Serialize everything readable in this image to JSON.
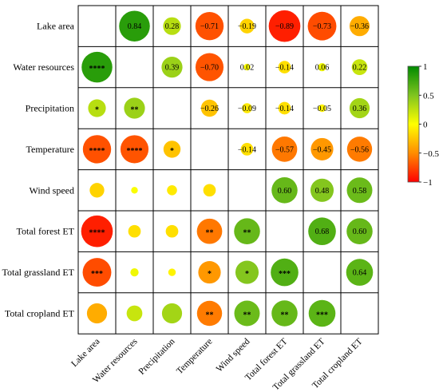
{
  "chart_data": {
    "type": "heatmap",
    "title": "",
    "variables": [
      "Lake area",
      "Water resources",
      "Precipitation",
      "Temperature",
      "Wind speed",
      "Total forest ET",
      "Total grassland ET",
      "Total cropland ET"
    ],
    "upper": [
      {
        "row": 0,
        "col": 1,
        "value": 0.84,
        "label": "0.84"
      },
      {
        "row": 0,
        "col": 2,
        "value": 0.28,
        "label": "0.28"
      },
      {
        "row": 0,
        "col": 3,
        "value": -0.71,
        "label": "−0.71"
      },
      {
        "row": 0,
        "col": 4,
        "value": -0.19,
        "label": "−0.19"
      },
      {
        "row": 0,
        "col": 5,
        "value": -0.89,
        "label": "−0.89"
      },
      {
        "row": 0,
        "col": 6,
        "value": -0.73,
        "label": "−0.73"
      },
      {
        "row": 0,
        "col": 7,
        "value": -0.36,
        "label": "−0.36"
      },
      {
        "row": 1,
        "col": 2,
        "value": 0.39,
        "label": "0.39"
      },
      {
        "row": 1,
        "col": 3,
        "value": -0.7,
        "label": "−0.70"
      },
      {
        "row": 1,
        "col": 4,
        "value": 0.02,
        "label": "0.02"
      },
      {
        "row": 1,
        "col": 5,
        "value": -0.14,
        "label": "−0.14"
      },
      {
        "row": 1,
        "col": 6,
        "value": 0.06,
        "label": "0.06"
      },
      {
        "row": 1,
        "col": 7,
        "value": 0.22,
        "label": "0.22"
      },
      {
        "row": 2,
        "col": 3,
        "value": -0.26,
        "label": "−0.26"
      },
      {
        "row": 2,
        "col": 4,
        "value": -0.09,
        "label": "−0.09"
      },
      {
        "row": 2,
        "col": 5,
        "value": -0.14,
        "label": "−0.14"
      },
      {
        "row": 2,
        "col": 6,
        "value": -0.05,
        "label": "−0.05"
      },
      {
        "row": 2,
        "col": 7,
        "value": 0.36,
        "label": "0.36"
      },
      {
        "row": 3,
        "col": 4,
        "value": -0.14,
        "label": "−0.14"
      },
      {
        "row": 3,
        "col": 5,
        "value": -0.57,
        "label": "−0.57"
      },
      {
        "row": 3,
        "col": 6,
        "value": -0.45,
        "label": "−0.45"
      },
      {
        "row": 3,
        "col": 7,
        "value": -0.56,
        "label": "−0.56"
      },
      {
        "row": 4,
        "col": 5,
        "value": 0.6,
        "label": "0.60"
      },
      {
        "row": 4,
        "col": 6,
        "value": 0.48,
        "label": "0.48"
      },
      {
        "row": 4,
        "col": 7,
        "value": 0.58,
        "label": "0.58"
      },
      {
        "row": 5,
        "col": 6,
        "value": 0.68,
        "label": "0.68"
      },
      {
        "row": 5,
        "col": 7,
        "value": 0.6,
        "label": "0.60"
      },
      {
        "row": 6,
        "col": 7,
        "value": 0.64,
        "label": "0.64"
      }
    ],
    "lower": [
      {
        "row": 1,
        "col": 0,
        "value": 0.84,
        "stars": "****"
      },
      {
        "row": 2,
        "col": 0,
        "value": 0.28,
        "stars": "*"
      },
      {
        "row": 2,
        "col": 1,
        "value": 0.39,
        "stars": "**"
      },
      {
        "row": 3,
        "col": 0,
        "value": -0.71,
        "stars": "****"
      },
      {
        "row": 3,
        "col": 1,
        "value": -0.7,
        "stars": "****"
      },
      {
        "row": 3,
        "col": 2,
        "value": -0.26,
        "stars": "*"
      },
      {
        "row": 4,
        "col": 0,
        "value": -0.19,
        "stars": ""
      },
      {
        "row": 4,
        "col": 1,
        "value": 0.02,
        "stars": ""
      },
      {
        "row": 4,
        "col": 2,
        "value": -0.09,
        "stars": ""
      },
      {
        "row": 4,
        "col": 3,
        "value": -0.14,
        "stars": ""
      },
      {
        "row": 5,
        "col": 0,
        "value": -0.89,
        "stars": "****"
      },
      {
        "row": 5,
        "col": 1,
        "value": -0.14,
        "stars": ""
      },
      {
        "row": 5,
        "col": 2,
        "value": -0.14,
        "stars": ""
      },
      {
        "row": 5,
        "col": 3,
        "value": -0.57,
        "stars": "**"
      },
      {
        "row": 5,
        "col": 4,
        "value": 0.6,
        "stars": "**"
      },
      {
        "row": 6,
        "col": 0,
        "value": -0.73,
        "stars": "***"
      },
      {
        "row": 6,
        "col": 1,
        "value": 0.06,
        "stars": ""
      },
      {
        "row": 6,
        "col": 2,
        "value": -0.05,
        "stars": ""
      },
      {
        "row": 6,
        "col": 3,
        "value": -0.45,
        "stars": "*"
      },
      {
        "row": 6,
        "col": 4,
        "value": 0.48,
        "stars": "*"
      },
      {
        "row": 6,
        "col": 5,
        "value": 0.68,
        "stars": "***"
      },
      {
        "row": 7,
        "col": 0,
        "value": -0.36,
        "stars": ""
      },
      {
        "row": 7,
        "col": 1,
        "value": 0.22,
        "stars": ""
      },
      {
        "row": 7,
        "col": 2,
        "value": 0.36,
        "stars": ""
      },
      {
        "row": 7,
        "col": 3,
        "value": -0.56,
        "stars": "**"
      },
      {
        "row": 7,
        "col": 4,
        "value": 0.58,
        "stars": "**"
      },
      {
        "row": 7,
        "col": 5,
        "value": 0.6,
        "stars": "**"
      },
      {
        "row": 7,
        "col": 6,
        "value": 0.64,
        "stars": "***"
      }
    ],
    "color_scale": {
      "min": -1,
      "max": 1,
      "ticks": [
        1,
        0.5,
        0,
        -0.5,
        -1
      ],
      "tick_labels": [
        "1",
        "0.5",
        "0",
        "−0.5",
        "−1"
      ],
      "colors": [
        "#ff0000",
        "#ff8c00",
        "#ffff00",
        "#7fc41f",
        "#008a00"
      ]
    },
    "legend_position": "right",
    "grid": true
  }
}
